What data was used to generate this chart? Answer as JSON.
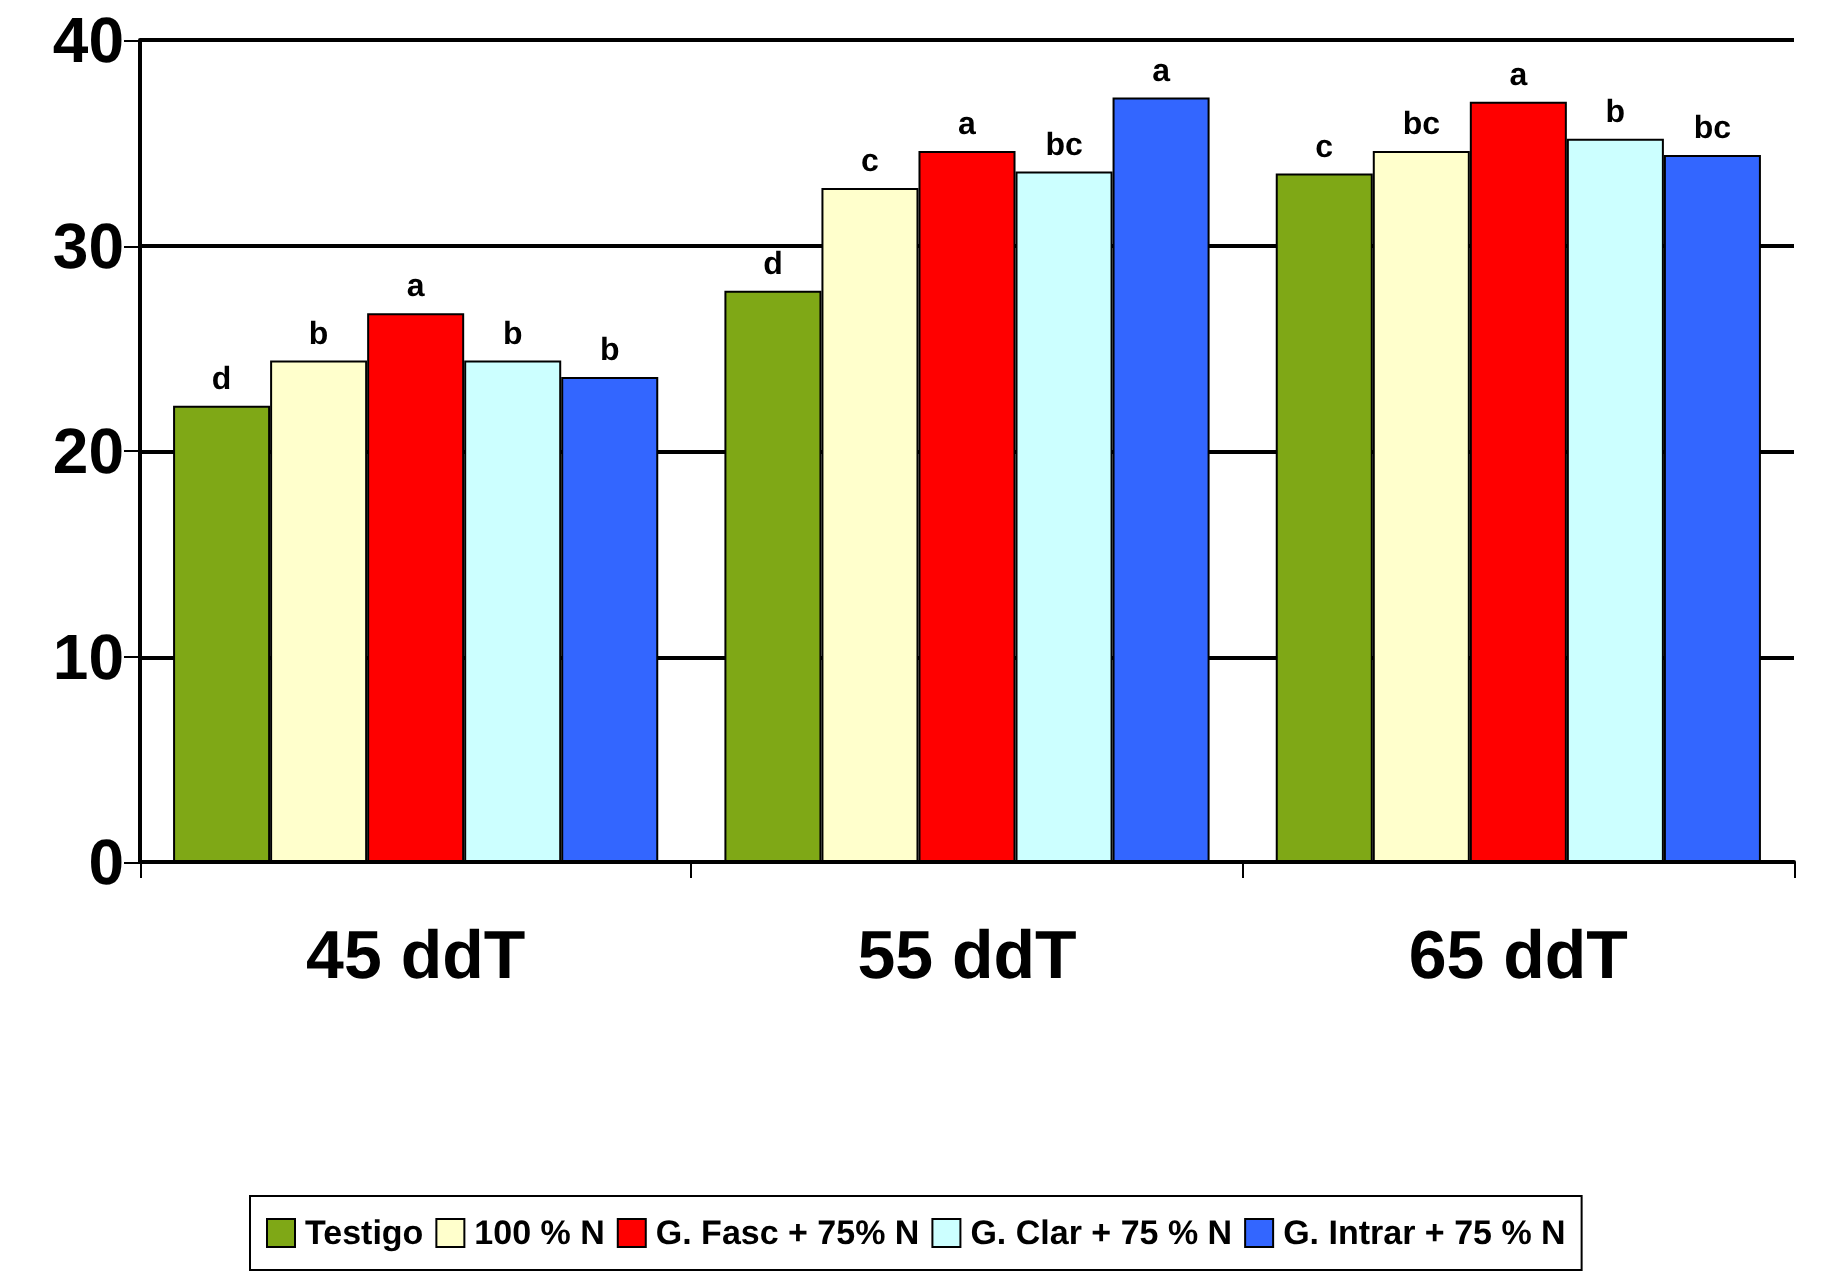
{
  "chart_data": {
    "type": "bar",
    "categories": [
      "45 ddT",
      "55 ddT",
      "65 ddT"
    ],
    "series": [
      {
        "name": "Testigo",
        "color": "#7fa816",
        "values": [
          22.2,
          27.8,
          33.5
        ],
        "value_labels": [
          "d",
          "d",
          "c"
        ]
      },
      {
        "name": "100 % N",
        "color": "#ffffcc",
        "values": [
          24.4,
          32.8,
          34.6
        ],
        "value_labels": [
          "b",
          "c",
          "bc"
        ]
      },
      {
        "name": "G. Fasc + 75% N",
        "color": "#ff0000",
        "values": [
          26.7,
          34.6,
          37.0
        ],
        "value_labels": [
          "a",
          "a",
          "a"
        ]
      },
      {
        "name": "G. Clar + 75 % N",
        "color": "#ccffff",
        "values": [
          24.4,
          33.6,
          35.2
        ],
        "value_labels": [
          "b",
          "bc",
          "b"
        ]
      },
      {
        "name": "G. Intrar + 75 % N",
        "color": "#3366ff",
        "values": [
          23.6,
          37.2,
          34.4
        ],
        "value_labels": [
          "b",
          "a",
          "bc"
        ]
      }
    ],
    "ylim": [
      0,
      40
    ],
    "yticks": [
      0,
      10,
      20,
      30,
      40
    ],
    "grid": "y",
    "legend": "bottom"
  }
}
